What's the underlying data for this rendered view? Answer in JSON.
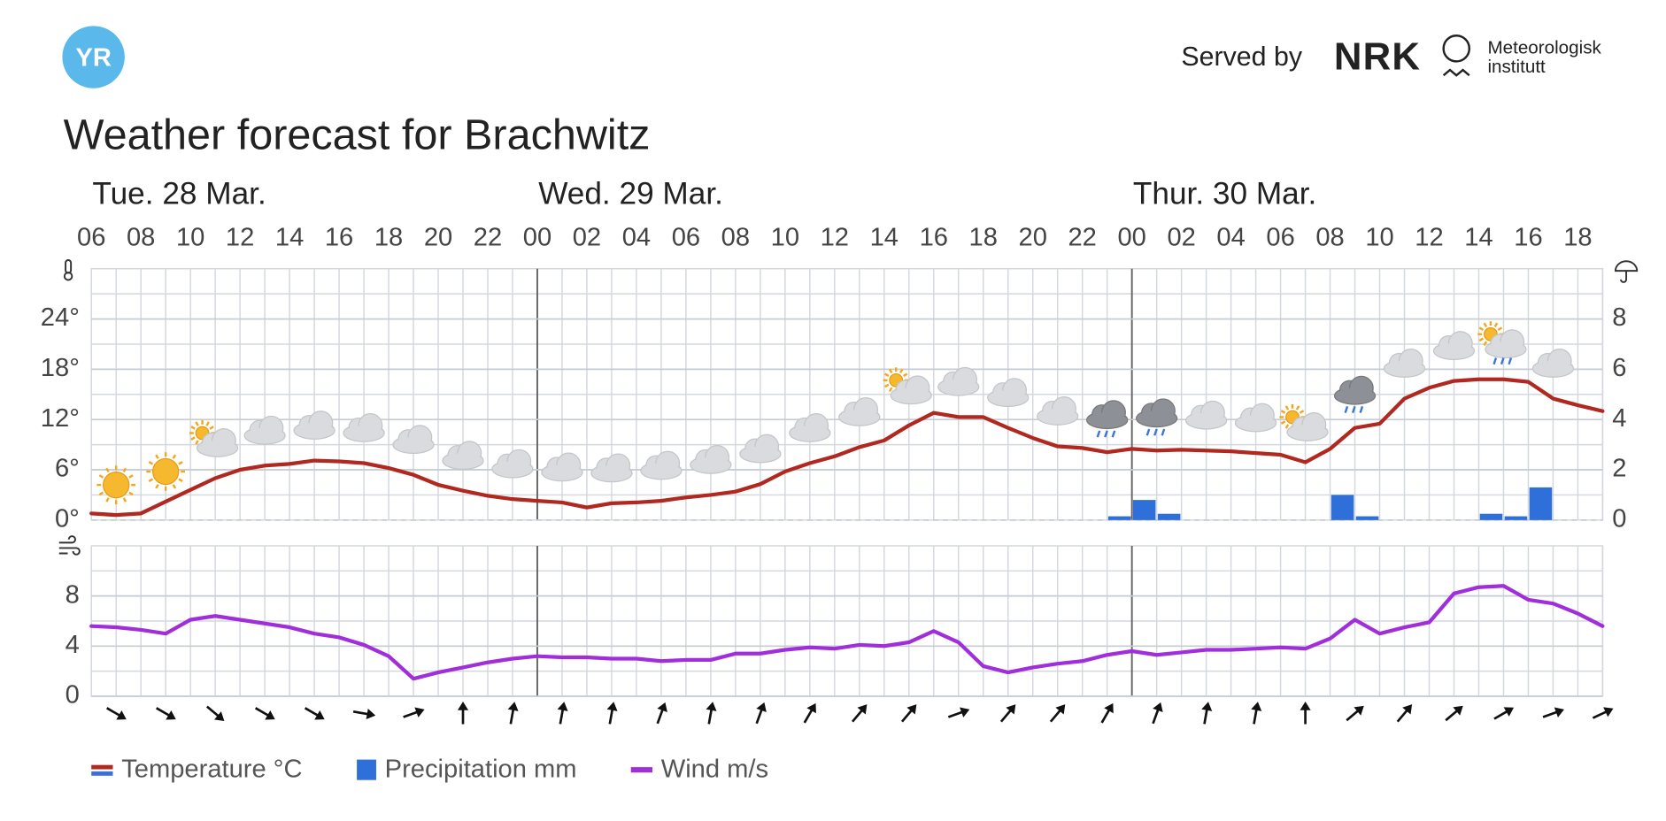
{
  "header": {
    "logo": "YR",
    "served_by": "Served by",
    "nrk": "NRK",
    "met": [
      "Meteorologisk",
      "institutt"
    ]
  },
  "chart_data": {
    "type": "line",
    "title": "Weather forecast for Brachwitz",
    "days": [
      "Tue. 28 Mar.",
      "Wed. 29 Mar.",
      "Thur. 30 Mar."
    ],
    "categories": [
      "06",
      null,
      "08",
      null,
      "10",
      null,
      "12",
      null,
      "14",
      null,
      "16",
      null,
      "18",
      null,
      "20",
      null,
      "22",
      null,
      "00",
      null,
      "02",
      null,
      "04",
      null,
      "06",
      null,
      "08",
      null,
      "10",
      null,
      "12",
      null,
      "14",
      null,
      "16",
      null,
      "18",
      null,
      "20",
      null,
      "22",
      null,
      "00",
      null,
      "02",
      null,
      "04",
      null,
      "06",
      null,
      "08",
      null,
      "10",
      null,
      "12",
      null,
      "14",
      null,
      "16",
      null,
      "18",
      null
    ],
    "series": [
      {
        "name": "Temperature °C",
        "color": "#b0281f",
        "axis": "y",
        "values": [
          0.8,
          0.6,
          0.8,
          2.2,
          3.6,
          5,
          6,
          6.5,
          6.7,
          7.1,
          7,
          6.8,
          6.2,
          5.4,
          4.2,
          3.5,
          2.9,
          2.5,
          2.3,
          2.1,
          1.5,
          2,
          2.1,
          2.3,
          2.7,
          3,
          3.4,
          4.3,
          5.8,
          6.8,
          7.6,
          8.7,
          9.5,
          11.3,
          12.8,
          12.3,
          12.3,
          11,
          9.8,
          8.8,
          8.6,
          8.1,
          8.5,
          8.3,
          8.4,
          8.3,
          8.2,
          8,
          7.8,
          6.9,
          8.5,
          11,
          11.5,
          14.5,
          15.8,
          16.6,
          16.8,
          16.8,
          16.5,
          14.5,
          13.7,
          13
        ]
      },
      {
        "name": "Precipitation mm",
        "color": "#2f6fd9",
        "axis": "y2",
        "values": [
          0,
          0,
          0,
          0,
          0,
          0,
          0,
          0,
          0,
          0,
          0,
          0,
          0,
          0,
          0,
          0,
          0,
          0,
          0,
          0,
          0,
          0,
          0,
          0,
          0,
          0,
          0,
          0,
          0,
          0,
          0,
          0,
          0,
          0,
          0,
          0,
          0,
          0,
          0,
          0,
          0,
          0.15,
          0.8,
          0.25,
          0,
          0,
          0,
          0,
          0,
          0,
          1.0,
          0.15,
          0,
          0,
          0,
          0,
          0.25,
          0.15,
          1.3,
          0,
          0,
          0
        ]
      },
      {
        "name": "Wind m/s",
        "color": "#a02fdb",
        "axis": "wind",
        "values": [
          5.6,
          5.5,
          5.3,
          5.0,
          6.1,
          6.4,
          6.1,
          5.8,
          5.5,
          5.0,
          4.7,
          4.1,
          3.2,
          1.4,
          1.9,
          2.3,
          2.7,
          3.0,
          3.2,
          3.1,
          3.1,
          3.0,
          3.0,
          2.8,
          2.9,
          2.9,
          3.4,
          3.4,
          3.7,
          3.9,
          3.8,
          4.1,
          4.0,
          4.3,
          5.2,
          4.3,
          2.4,
          1.9,
          2.3,
          2.6,
          2.8,
          3.3,
          3.6,
          3.3,
          3.5,
          3.7,
          3.7,
          3.8,
          3.9,
          3.8,
          4.6,
          6.1,
          5.0,
          5.5,
          5.9,
          8.2,
          8.7,
          8.8,
          7.7,
          7.4,
          6.6,
          5.6
        ]
      }
    ],
    "ylim": [
      0,
      30
    ],
    "yticks": [
      {
        "value": 0,
        "label": "0°"
      },
      {
        "value": 6,
        "label": "6°"
      },
      {
        "value": 12,
        "label": "12°"
      },
      {
        "value": 18,
        "label": "18°"
      },
      {
        "value": 24,
        "label": "24°"
      }
    ],
    "y2lim": [
      0,
      10
    ],
    "y2ticks": [
      0,
      2,
      4,
      6,
      8
    ],
    "wind_ylim": [
      0,
      12
    ],
    "wind_yticks": [
      0,
      4,
      8
    ],
    "wind_direction": [
      120,
      120,
      130,
      120,
      120,
      100,
      70,
      0,
      10,
      10,
      10,
      20,
      10,
      20,
      30,
      40,
      40,
      70,
      40,
      40,
      30,
      20,
      10,
      10,
      0,
      50,
      40,
      50,
      60,
      70,
      65
    ],
    "grid": true
  }
}
